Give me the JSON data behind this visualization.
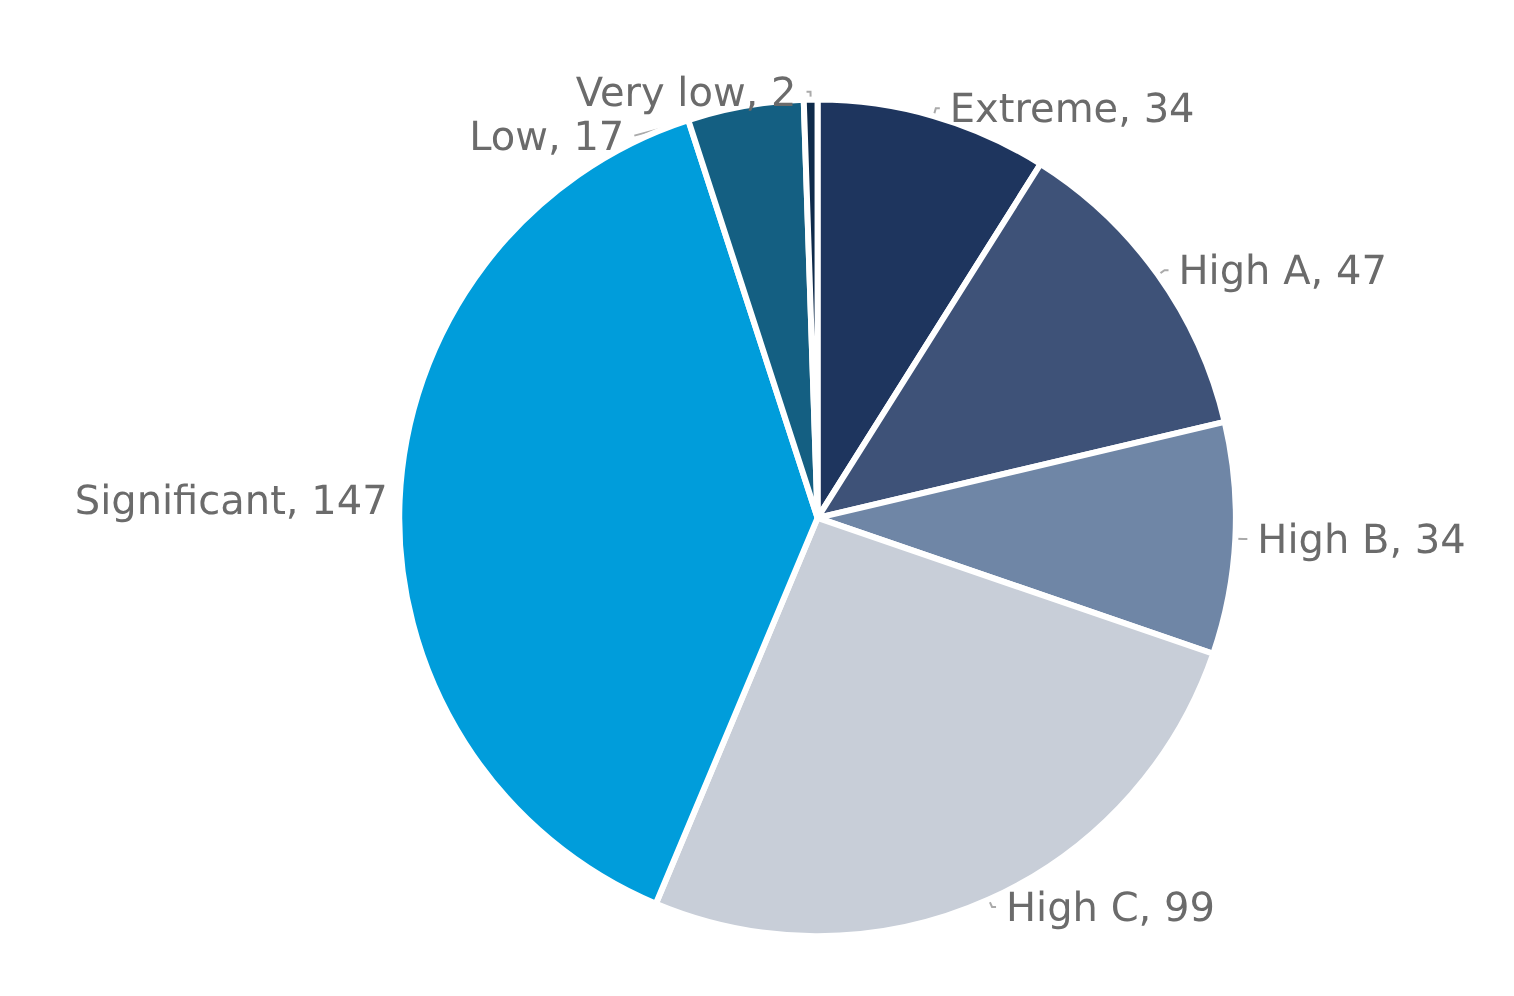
{
  "chart_data": {
    "type": "pie",
    "categories": [
      "Extreme",
      "High A",
      "High B",
      "High C",
      "Significant",
      "Low",
      "Very low"
    ],
    "values": [
      34,
      47,
      34,
      99,
      147,
      17,
      2
    ],
    "value_labels": [
      ", 34",
      ", 47",
      ", 34",
      ", 99",
      ", 147",
      ", 17",
      ", 2"
    ],
    "colors": [
      "#1e355e",
      "#3e5278",
      "#6f86a6",
      "#c8ced8",
      "#009ddb",
      "#145f82",
      "#0e2a4a"
    ],
    "legend": false
  }
}
